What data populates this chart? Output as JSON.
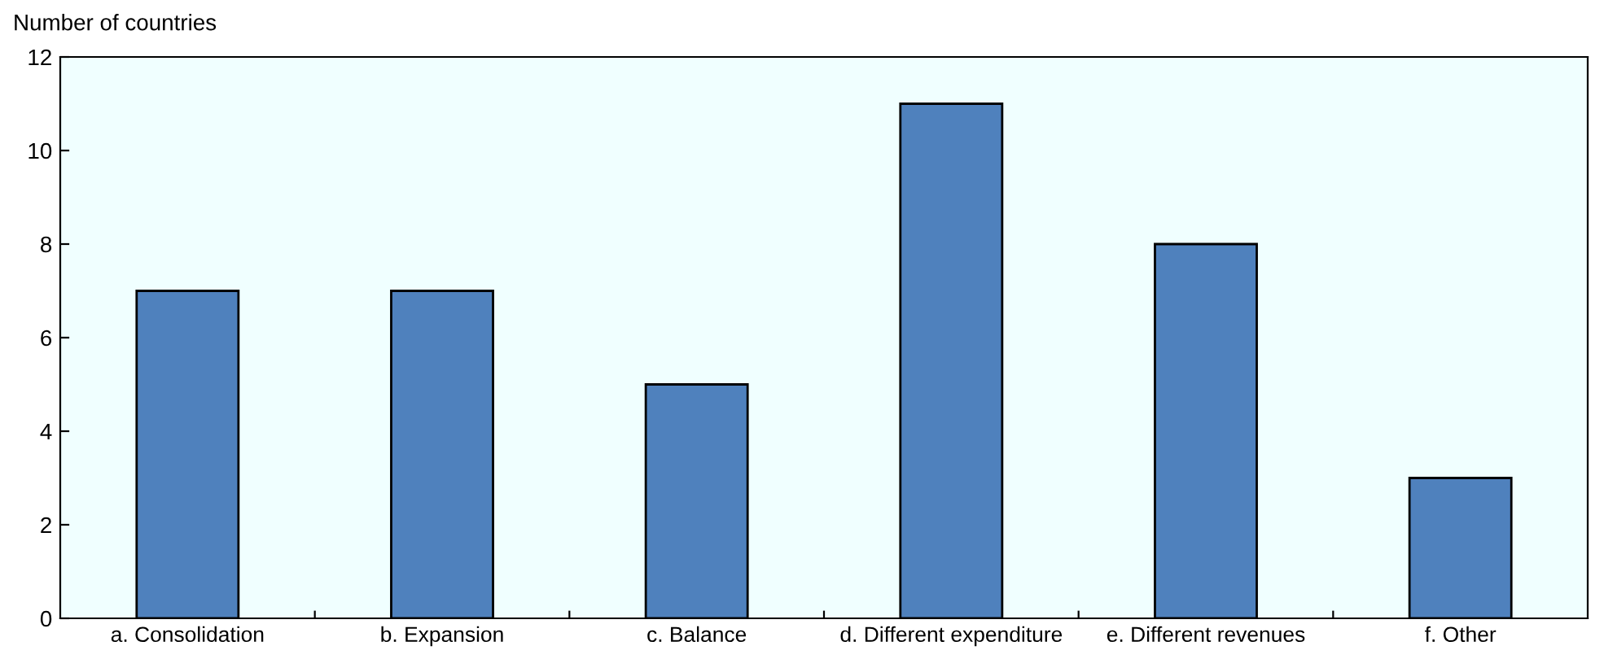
{
  "chart_data": {
    "type": "bar",
    "ylabel": "Number of countries",
    "categories": [
      "a. Consolidation",
      "b. Expansion",
      "c. Balance",
      "d. Different expenditure",
      "e. Different revenues",
      "f. Other"
    ],
    "values": [
      7,
      7,
      5,
      11,
      8,
      3
    ],
    "color": "#4f81bd",
    "ylim": [
      0,
      12
    ],
    "yticks": [
      0,
      2,
      4,
      6,
      8,
      10,
      12
    ],
    "grid": false,
    "legend": false
  }
}
